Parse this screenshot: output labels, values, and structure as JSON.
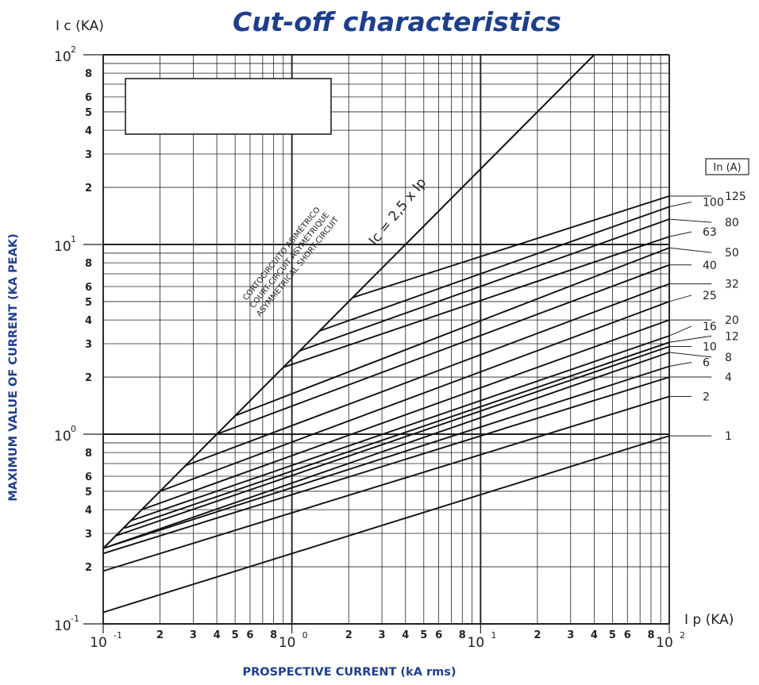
{
  "chart_data": {
    "type": "line",
    "title": "Cut-off characteristics",
    "xlabel": "PROSPECTIVE CURRENT (kA rms)",
    "ylabel": "MAXIMUM VALUE OF CURRENT (KA PEAK)",
    "x_axis_symbol": "I p (KA)",
    "y_axis_symbol": "I c (KA)",
    "x_scale": "log",
    "y_scale": "log",
    "xlim": [
      0.1,
      100
    ],
    "ylim": [
      0.1,
      100
    ],
    "grid": true,
    "x_decade_labels": [
      {
        "base": "10",
        "exp": "-1"
      },
      {
        "base": "10",
        "exp": "0"
      },
      {
        "base": "10",
        "exp": "1"
      },
      {
        "base": "10",
        "exp": "2"
      }
    ],
    "y_decade_labels": [
      {
        "base": "10",
        "exp": "-1"
      },
      {
        "base": "10",
        "exp": "0"
      },
      {
        "base": "10",
        "exp": "1"
      },
      {
        "base": "10",
        "exp": "2"
      }
    ],
    "x_minor_tick_labels": [
      "2",
      "3",
      "4",
      "5",
      "6",
      "8"
    ],
    "y_minor_tick_labels": [
      "2",
      "3",
      "4",
      "5",
      "6",
      "8"
    ],
    "legend_title": "In (A)",
    "diagonal": {
      "label": "Ic = 2,5 x Ip",
      "annotation": [
        "CORTOCIRCUITO ASIMÉTRICO",
        "COURT-CIRCUIT ASYMÉTRIQUE",
        "ASYMMETRICAL SHORT-CIRCUIT"
      ],
      "x": [
        0.1,
        40
      ],
      "y": [
        0.25,
        100
      ]
    },
    "series": [
      {
        "name": "1",
        "x": [
          0.1,
          100
        ],
        "y": [
          0.115,
          0.98
        ]
      },
      {
        "name": "2",
        "x": [
          0.1,
          100
        ],
        "y": [
          0.19,
          1.58
        ]
      },
      {
        "name": "4",
        "x": [
          0.1,
          100
        ],
        "y": [
          0.235,
          2.0
        ]
      },
      {
        "name": "6",
        "x": [
          0.1,
          100
        ],
        "y": [
          0.25,
          2.28
        ]
      },
      {
        "name": "8",
        "x": [
          0.1,
          100
        ],
        "y": [
          0.25,
          2.7
        ]
      },
      {
        "name": "10",
        "x": [
          0.115,
          100
        ],
        "y": [
          0.29,
          2.9
        ]
      },
      {
        "name": "12",
        "x": [
          0.13,
          100
        ],
        "y": [
          0.32,
          3.05
        ]
      },
      {
        "name": "16",
        "x": [
          0.14,
          100
        ],
        "y": [
          0.35,
          3.3
        ]
      },
      {
        "name": "20",
        "x": [
          0.16,
          100
        ],
        "y": [
          0.4,
          4.0
        ]
      },
      {
        "name": "25",
        "x": [
          0.2,
          100
        ],
        "y": [
          0.5,
          5.0
        ]
      },
      {
        "name": "32",
        "x": [
          0.27,
          100
        ],
        "y": [
          0.68,
          6.2
        ]
      },
      {
        "name": "40",
        "x": [
          0.4,
          100
        ],
        "y": [
          1.0,
          7.8
        ]
      },
      {
        "name": "50",
        "x": [
          0.5,
          100
        ],
        "y": [
          1.25,
          9.6
        ]
      },
      {
        "name": "63",
        "x": [
          0.9,
          100
        ],
        "y": [
          2.25,
          11.0
        ]
      },
      {
        "name": "80",
        "x": [
          1.1,
          100
        ],
        "y": [
          2.75,
          13.6
        ]
      },
      {
        "name": "100",
        "x": [
          1.4,
          100
        ],
        "y": [
          3.5,
          15.8
        ]
      },
      {
        "name": "125",
        "x": [
          2.1,
          100
        ],
        "y": [
          5.25,
          18.0
        ]
      }
    ]
  }
}
